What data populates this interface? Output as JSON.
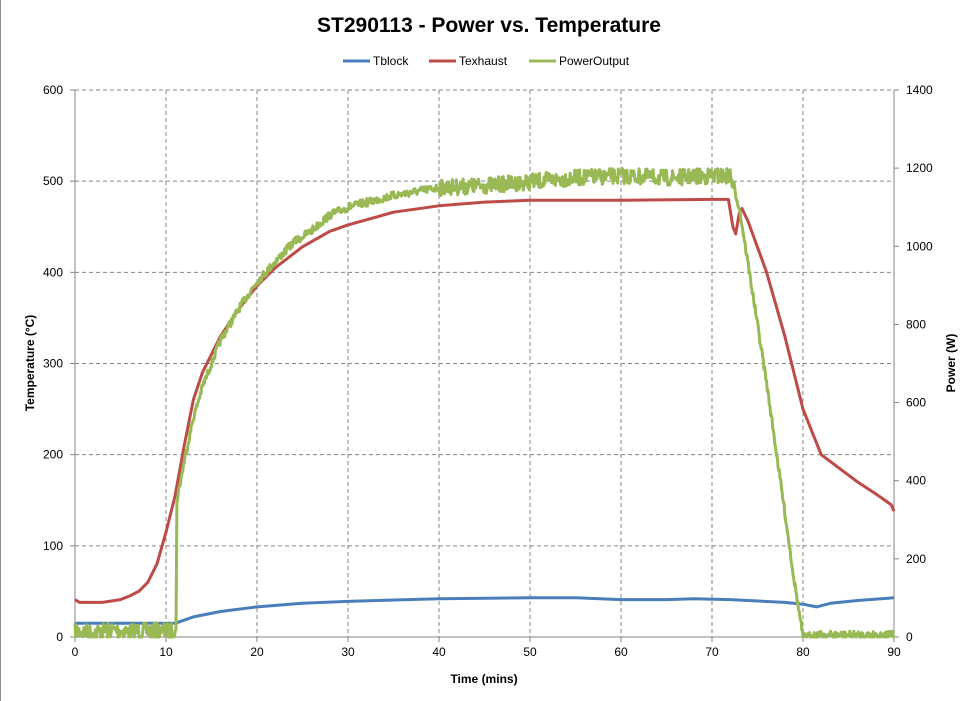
{
  "chart_data": {
    "type": "line",
    "title": "ST290113 - Power vs. Temperature",
    "xlabel": "Time (mins)",
    "ylabel": "Temperature (°C)",
    "y2label": "Power (W)",
    "xlim": [
      0,
      90
    ],
    "ylim": [
      0,
      600
    ],
    "y2lim": [
      0,
      1400
    ],
    "xticks": [
      "0",
      "10",
      "20",
      "30",
      "40",
      "50",
      "60",
      "70",
      "80",
      "90"
    ],
    "yticks": [
      "0",
      "100",
      "200",
      "300",
      "400",
      "500",
      "600"
    ],
    "y2ticks": [
      "0",
      "200",
      "400",
      "600",
      "800",
      "1000",
      "1200",
      "1400"
    ],
    "grid": true,
    "legend": "top",
    "series": [
      {
        "name": "Tblock",
        "axis": "left",
        "color": "#4a7ebb",
        "x": [
          0,
          5,
          11,
          13,
          16,
          20,
          25,
          30,
          40,
          50,
          55,
          60,
          65,
          68,
          72,
          78,
          80,
          81.5,
          83,
          86,
          90
        ],
        "y": [
          15,
          15,
          15,
          22,
          28,
          33,
          37,
          39,
          42,
          43,
          43,
          41,
          41,
          42,
          41,
          38,
          36,
          33,
          37,
          40,
          43
        ]
      },
      {
        "name": "Texhaust",
        "axis": "left",
        "color": "#be4b48",
        "x": [
          0,
          0.5,
          3,
          5,
          6,
          7,
          8,
          9,
          10,
          11,
          12,
          13,
          14,
          16,
          18,
          20,
          22,
          25,
          28,
          30,
          35,
          40,
          45,
          50,
          60,
          70,
          71.8,
          72.3,
          72.6,
          73,
          73.3,
          74,
          76,
          78,
          80,
          81,
          82,
          84,
          86,
          88,
          89.7,
          90
        ],
        "y": [
          41,
          38,
          38,
          41,
          45,
          50,
          60,
          80,
          115,
          155,
          210,
          260,
          290,
          330,
          360,
          385,
          405,
          428,
          445,
          452,
          466,
          473,
          477,
          479,
          479,
          480,
          480,
          450,
          442,
          465,
          470,
          455,
          400,
          330,
          250,
          225,
          200,
          185,
          170,
          157,
          145,
          138
        ]
      },
      {
        "name": "PowerOutput",
        "axis": "right",
        "color": "#98b954",
        "x": [
          0,
          2,
          4,
          6,
          8,
          10,
          11.1,
          11.2,
          12,
          13,
          14,
          15,
          16,
          18,
          20,
          22,
          24,
          26,
          28,
          30,
          35,
          40,
          45,
          50,
          55,
          60,
          65,
          70,
          72,
          73,
          74,
          76,
          78,
          79,
          80,
          80.5,
          81,
          85,
          90
        ],
        "y": [
          15,
          12,
          18,
          14,
          16,
          15,
          15,
          350,
          450,
          560,
          640,
          700,
          760,
          840,
          910,
          960,
          1010,
          1040,
          1080,
          1100,
          1130,
          1150,
          1155,
          1165,
          1175,
          1180,
          1175,
          1180,
          1180,
          1100,
          950,
          650,
          320,
          150,
          0,
          0,
          5,
          5,
          5
        ]
      }
    ]
  }
}
